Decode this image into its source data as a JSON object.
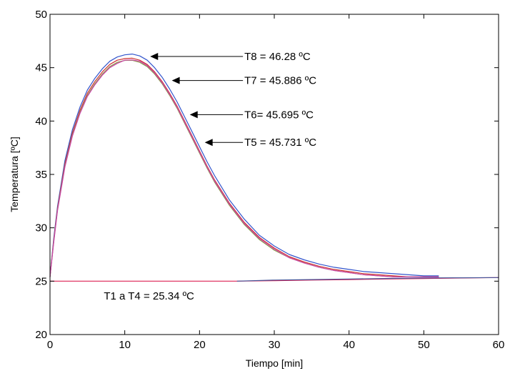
{
  "chart_data": {
    "type": "line",
    "title": "",
    "xlabel": "Tiempo [min]",
    "ylabel": "Temperatura [ºC]",
    "xlim": [
      0,
      60
    ],
    "ylim": [
      20,
      50
    ],
    "xticks": [
      0,
      10,
      20,
      30,
      40,
      50,
      60
    ],
    "yticks": [
      20,
      25,
      30,
      35,
      40,
      45,
      50
    ],
    "grid": false,
    "legend": "none",
    "series": [
      {
        "color": "#3355cc",
        "x": [
          0,
          0.5,
          1,
          2,
          3,
          4,
          5,
          6,
          7,
          8,
          9,
          10,
          11,
          12,
          13,
          14,
          15,
          16,
          17,
          18,
          19,
          20,
          21,
          22,
          24,
          26,
          28,
          30,
          32,
          34,
          36,
          38,
          40,
          42,
          44,
          46,
          48,
          50,
          52
        ],
        "y": [
          25.4,
          29.0,
          32.0,
          36.3,
          39.2,
          41.3,
          42.9,
          44.0,
          44.9,
          45.6,
          46.0,
          46.2,
          46.28,
          46.1,
          45.7,
          45.0,
          44.1,
          43.0,
          41.8,
          40.4,
          39.0,
          37.6,
          36.2,
          34.9,
          32.6,
          30.8,
          29.3,
          28.3,
          27.5,
          27.0,
          26.6,
          26.3,
          26.1,
          25.9,
          25.8,
          25.7,
          25.6,
          25.5,
          25.5
        ]
      },
      {
        "color": "#cc3333",
        "x": [
          0,
          0.5,
          1,
          2,
          3,
          4,
          5,
          6,
          7,
          8,
          9,
          10,
          11,
          12,
          13,
          14,
          15,
          16,
          17,
          18,
          19,
          20,
          21,
          22,
          24,
          26,
          28,
          30,
          32,
          34,
          36,
          38,
          40,
          42,
          44,
          46,
          48,
          50,
          52
        ],
        "y": [
          25.4,
          28.8,
          31.8,
          36.0,
          38.9,
          41.0,
          42.6,
          43.7,
          44.6,
          45.3,
          45.7,
          45.85,
          45.886,
          45.7,
          45.3,
          44.6,
          43.7,
          42.6,
          41.4,
          40.0,
          38.6,
          37.2,
          35.8,
          34.5,
          32.3,
          30.5,
          29.1,
          28.1,
          27.3,
          26.8,
          26.4,
          26.1,
          25.9,
          25.7,
          25.6,
          25.5,
          25.4,
          25.4,
          25.4
        ]
      },
      {
        "color": "#889944",
        "x": [
          0,
          0.5,
          1,
          2,
          3,
          4,
          5,
          6,
          7,
          8,
          9,
          10,
          11,
          12,
          13,
          14,
          15,
          16,
          17,
          18,
          19,
          20,
          21,
          22,
          24,
          26,
          28,
          30,
          32,
          34,
          36,
          38,
          40,
          42,
          44,
          46,
          48,
          50,
          52
        ],
        "y": [
          25.4,
          28.7,
          31.7,
          35.8,
          38.7,
          40.8,
          42.4,
          43.5,
          44.4,
          45.1,
          45.5,
          45.68,
          45.695,
          45.5,
          45.1,
          44.4,
          43.5,
          42.4,
          41.2,
          39.8,
          38.4,
          37.0,
          35.6,
          34.3,
          32.1,
          30.3,
          28.9,
          27.9,
          27.2,
          26.7,
          26.3,
          26.0,
          25.8,
          25.6,
          25.5,
          25.4,
          25.4,
          25.4,
          25.4
        ]
      },
      {
        "color": "#cc44aa",
        "x": [
          0,
          0.5,
          1,
          2,
          3,
          4,
          5,
          6,
          7,
          8,
          9,
          10,
          11,
          12,
          13,
          14,
          15,
          16,
          17,
          18,
          19,
          20,
          21,
          22,
          24,
          26,
          28,
          30,
          32,
          34,
          36,
          38,
          40,
          42,
          44,
          46,
          48,
          50,
          52
        ],
        "y": [
          25.4,
          28.6,
          31.6,
          35.7,
          38.6,
          40.7,
          42.3,
          43.4,
          44.3,
          45.0,
          45.4,
          45.7,
          45.731,
          45.6,
          45.2,
          44.5,
          43.6,
          42.5,
          41.3,
          39.9,
          38.5,
          37.1,
          35.7,
          34.4,
          32.2,
          30.4,
          29.0,
          28.0,
          27.2,
          26.7,
          26.3,
          26.0,
          25.8,
          25.6,
          25.5,
          25.4,
          25.4,
          25.4,
          25.4
        ]
      },
      {
        "color": "#dd2255",
        "x": [
          0,
          10,
          20,
          25,
          30,
          35,
          40,
          45,
          50,
          55,
          60
        ],
        "y": [
          25.0,
          25.0,
          25.0,
          25.0,
          25.05,
          25.1,
          25.15,
          25.2,
          25.25,
          25.3,
          25.34
        ]
      },
      {
        "color": "#445599",
        "x": [
          25,
          30,
          35,
          40,
          45,
          50,
          55,
          60
        ],
        "y": [
          25.0,
          25.1,
          25.15,
          25.2,
          25.25,
          25.3,
          25.32,
          25.34
        ]
      }
    ],
    "annotations": [
      {
        "text": "T8 = 46.28 ºC",
        "text_x": 26.0,
        "text_y": 46.05,
        "arrow_to_x": 13.4,
        "arrow_to_y": 46.05
      },
      {
        "text": "T7 = 45.886 ºC",
        "text_x": 26.0,
        "text_y": 43.8,
        "arrow_to_x": 16.3,
        "arrow_to_y": 43.8
      },
      {
        "text": "T6= 45.695 ºC",
        "text_x": 26.0,
        "text_y": 40.6,
        "arrow_to_x": 18.7,
        "arrow_to_y": 40.6
      },
      {
        "text": "T5 = 45.731 ºC",
        "text_x": 26.0,
        "text_y": 38.0,
        "arrow_to_x": 20.7,
        "arrow_to_y": 38.0
      },
      {
        "text": "T1 a T4 = 25.34 ºC",
        "text_x": 7.2,
        "text_y": 23.6
      }
    ]
  }
}
